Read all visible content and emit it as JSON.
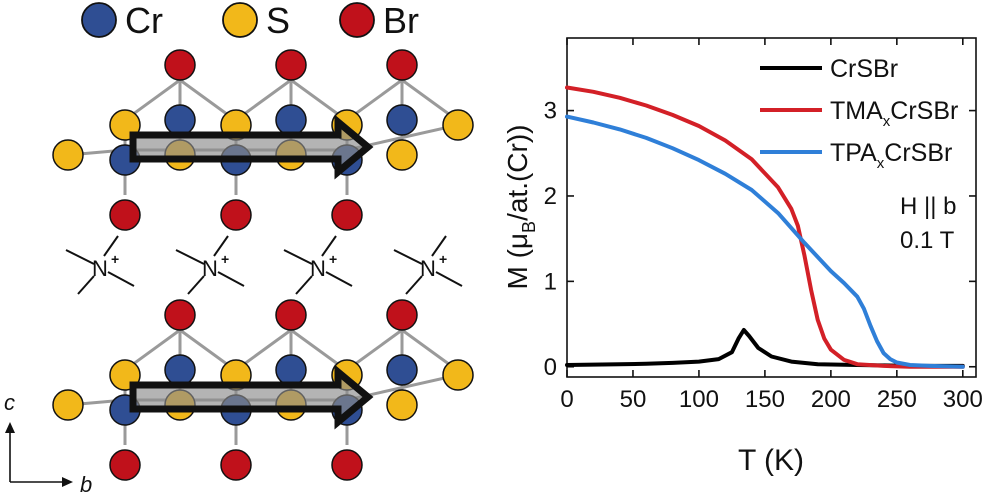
{
  "legend_top": {
    "items": [
      {
        "label": "Cr",
        "color": "#2f4e93"
      },
      {
        "label": "S",
        "color": "#f2b81a"
      },
      {
        "label": "Br",
        "color": "#c0111b"
      }
    ]
  },
  "structure": {
    "ammonium_symbol": "N",
    "ammonium_charge": "+",
    "axes": {
      "c_label": "c",
      "b_label": "b"
    },
    "colors": {
      "cr": "#2f4e93",
      "s": "#f2b81a",
      "br": "#c0111b",
      "bond": "#9a9a9a",
      "arrow_fill": "#8c8c8c"
    }
  },
  "chart_data": {
    "type": "line",
    "xlabel": "T (K)",
    "ylabel_main": "M (μ",
    "ylabel_sub": "B",
    "ylabel_rest": "/at.(Cr))",
    "xlim": [
      0,
      310
    ],
    "ylim": [
      -0.12,
      3.85
    ],
    "xticks": [
      0,
      50,
      100,
      150,
      200,
      250,
      300
    ],
    "yticks": [
      0,
      1,
      2,
      3
    ],
    "annotation_lines": [
      "H || b",
      "0.1 T"
    ],
    "grid": false,
    "legend_position": "top-right",
    "series": [
      {
        "name": "CrSBr",
        "name_main": "CrSBr",
        "name_sub": "",
        "name_rest": "",
        "color": "#000000",
        "x": [
          0,
          20,
          40,
          60,
          80,
          100,
          115,
          125,
          130,
          134,
          138,
          145,
          155,
          170,
          190,
          220,
          260,
          300
        ],
        "y": [
          0.02,
          0.025,
          0.03,
          0.035,
          0.045,
          0.06,
          0.09,
          0.17,
          0.33,
          0.43,
          0.36,
          0.22,
          0.12,
          0.06,
          0.03,
          0.02,
          0.01,
          0.01
        ]
      },
      {
        "name": "TMAxCrSBr",
        "name_main": "TMA",
        "name_sub": "x",
        "name_rest": "CrSBr",
        "color": "#d32027",
        "x": [
          0,
          20,
          40,
          60,
          80,
          100,
          120,
          140,
          160,
          170,
          175,
          180,
          185,
          190,
          195,
          200,
          210,
          220,
          240,
          260,
          300
        ],
        "y": [
          3.27,
          3.22,
          3.15,
          3.06,
          2.95,
          2.82,
          2.65,
          2.43,
          2.1,
          1.85,
          1.65,
          1.3,
          0.9,
          0.55,
          0.33,
          0.2,
          0.08,
          0.03,
          0.01,
          0.0,
          0.0
        ]
      },
      {
        "name": "TPAxCrSBr",
        "name_main": "TPA",
        "name_sub": "x",
        "name_rest": "CrSBr",
        "color": "#2f7fd8",
        "x": [
          0,
          20,
          40,
          60,
          80,
          100,
          120,
          140,
          160,
          180,
          200,
          210,
          220,
          225,
          230,
          235,
          240,
          245,
          250,
          260,
          275,
          300
        ],
        "y": [
          2.93,
          2.86,
          2.78,
          2.68,
          2.56,
          2.42,
          2.26,
          2.07,
          1.8,
          1.45,
          1.12,
          0.98,
          0.82,
          0.68,
          0.48,
          0.3,
          0.16,
          0.09,
          0.05,
          0.02,
          0.01,
          0.0
        ]
      }
    ]
  }
}
